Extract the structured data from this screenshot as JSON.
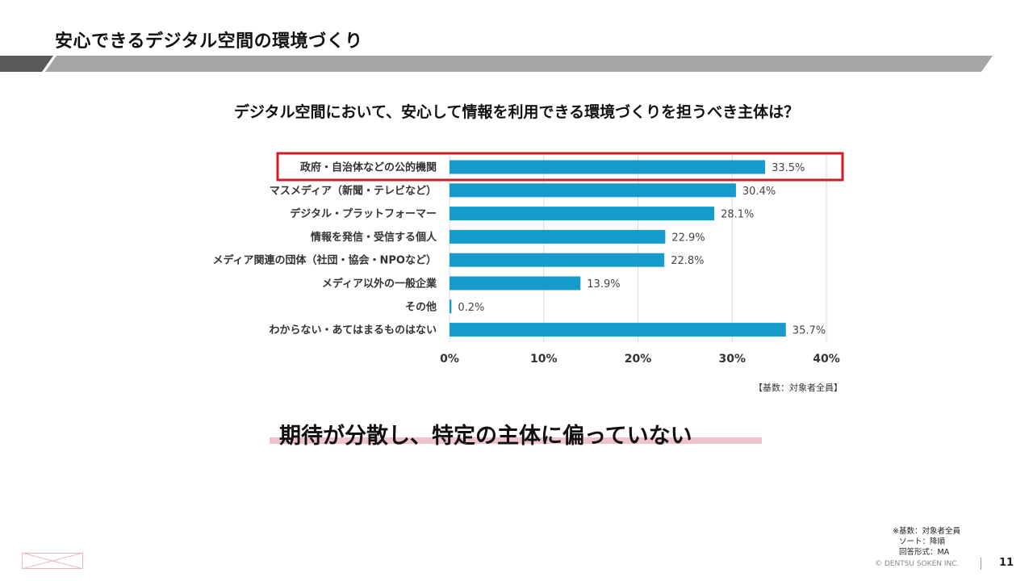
{
  "slide": {
    "title": "安心できるデジタル空間の環境づくり",
    "headline": "期待が分散し、特定の主体に偏っていない",
    "notes": [
      "※基数：対象者全員",
      "ソート：降順",
      "回答形式：MA"
    ],
    "copyright": "©  DENTSU SOKEN INC.",
    "page_number": "11"
  },
  "colors": {
    "bar": "#159bcc",
    "highlight": "#d61a24",
    "band": "#a6a6a6",
    "band_dark": "#595959",
    "grid": "#d9d9d9",
    "underline": "#efc2cc"
  },
  "chart_data": {
    "type": "bar",
    "orientation": "horizontal",
    "title": "デジタル空間において、安心して情報を利用できる環境づくりを担うべき主体は？",
    "categories": [
      "政府・自治体などの公的機関",
      "マスメディア（新聞・テレビなど）",
      "デジタル・プラットフォーマー",
      "情報を発信・受信する個人",
      "メディア関連の団体（社団・協会・NPOなど）",
      "メディア以外の一般企業",
      "その他",
      "わからない・あてはまるものはない"
    ],
    "values": [
      33.5,
      30.4,
      28.1,
      22.9,
      22.8,
      13.9,
      0.2,
      35.7
    ],
    "value_labels": [
      "33.5%",
      "30.4%",
      "28.1%",
      "22.9%",
      "22.8%",
      "13.9%",
      "0.2%",
      "35.7%"
    ],
    "xlim": [
      0,
      40
    ],
    "xticks": [
      0,
      10,
      20,
      30,
      40
    ],
    "xtick_labels": [
      "0%",
      "10%",
      "20%",
      "30%",
      "40%"
    ],
    "highlighted_category": "政府・自治体などの公的機関",
    "base_note": "【基数：対象者全員】",
    "grid": true
  }
}
